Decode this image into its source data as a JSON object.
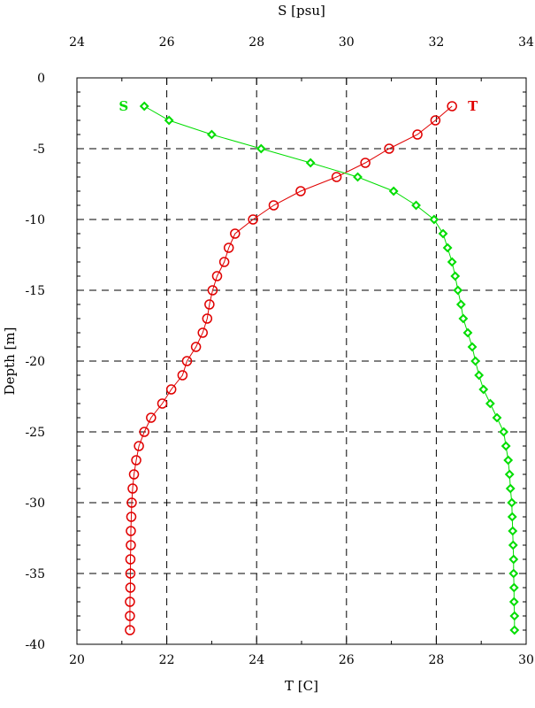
{
  "chart_data": {
    "type": "scatter",
    "grid": true,
    "bottom_axis": {
      "label": "T [C]",
      "range": [
        20,
        30
      ],
      "ticks": [
        20,
        22,
        24,
        26,
        28,
        30
      ]
    },
    "top_axis": {
      "label": "S [psu]",
      "range": [
        24,
        34
      ],
      "ticks": [
        24,
        26,
        28,
        30,
        32,
        34
      ]
    },
    "y_axis": {
      "label": "Depth [m]",
      "range": [
        -40,
        0
      ],
      "ticks": [
        0,
        -5,
        -10,
        -15,
        -20,
        -25,
        -30,
        -35,
        -40
      ]
    },
    "series": [
      {
        "name": "T",
        "axis": "bottom",
        "color": "#e00000",
        "marker": "circle",
        "points": [
          [
            28.35,
            -2
          ],
          [
            27.98,
            -3
          ],
          [
            27.58,
            -4
          ],
          [
            26.95,
            -5
          ],
          [
            26.42,
            -6
          ],
          [
            25.78,
            -7
          ],
          [
            24.98,
            -8
          ],
          [
            24.38,
            -9
          ],
          [
            23.92,
            -10
          ],
          [
            23.52,
            -11
          ],
          [
            23.38,
            -12
          ],
          [
            23.28,
            -13
          ],
          [
            23.12,
            -14
          ],
          [
            23.02,
            -15
          ],
          [
            22.95,
            -16
          ],
          [
            22.9,
            -17
          ],
          [
            22.8,
            -18
          ],
          [
            22.65,
            -19
          ],
          [
            22.45,
            -20
          ],
          [
            22.35,
            -21
          ],
          [
            22.1,
            -22
          ],
          [
            21.9,
            -23
          ],
          [
            21.65,
            -24
          ],
          [
            21.5,
            -25
          ],
          [
            21.38,
            -26
          ],
          [
            21.32,
            -27
          ],
          [
            21.27,
            -28
          ],
          [
            21.24,
            -29
          ],
          [
            21.22,
            -30
          ],
          [
            21.21,
            -31
          ],
          [
            21.2,
            -32
          ],
          [
            21.2,
            -33
          ],
          [
            21.19,
            -34
          ],
          [
            21.19,
            -35
          ],
          [
            21.19,
            -36
          ],
          [
            21.18,
            -37
          ],
          [
            21.18,
            -38
          ],
          [
            21.18,
            -39
          ]
        ]
      },
      {
        "name": "S",
        "axis": "top",
        "color": "#00dd00",
        "marker": "diamond",
        "points": [
          [
            25.5,
            -2
          ],
          [
            26.05,
            -3
          ],
          [
            27.0,
            -4
          ],
          [
            28.1,
            -5
          ],
          [
            29.2,
            -6
          ],
          [
            30.25,
            -7
          ],
          [
            31.05,
            -8
          ],
          [
            31.55,
            -9
          ],
          [
            31.95,
            -10
          ],
          [
            32.15,
            -11
          ],
          [
            32.25,
            -12
          ],
          [
            32.35,
            -13
          ],
          [
            32.42,
            -14
          ],
          [
            32.48,
            -15
          ],
          [
            32.55,
            -16
          ],
          [
            32.6,
            -17
          ],
          [
            32.7,
            -18
          ],
          [
            32.8,
            -19
          ],
          [
            32.87,
            -20
          ],
          [
            32.95,
            -21
          ],
          [
            33.05,
            -22
          ],
          [
            33.2,
            -23
          ],
          [
            33.35,
            -24
          ],
          [
            33.5,
            -25
          ],
          [
            33.55,
            -26
          ],
          [
            33.6,
            -27
          ],
          [
            33.63,
            -28
          ],
          [
            33.65,
            -29
          ],
          [
            33.68,
            -30
          ],
          [
            33.69,
            -31
          ],
          [
            33.7,
            -32
          ],
          [
            33.71,
            -33
          ],
          [
            33.72,
            -34
          ],
          [
            33.72,
            -35
          ],
          [
            33.73,
            -36
          ],
          [
            33.73,
            -37
          ],
          [
            33.74,
            -38
          ],
          [
            33.74,
            -39
          ]
        ]
      }
    ]
  }
}
